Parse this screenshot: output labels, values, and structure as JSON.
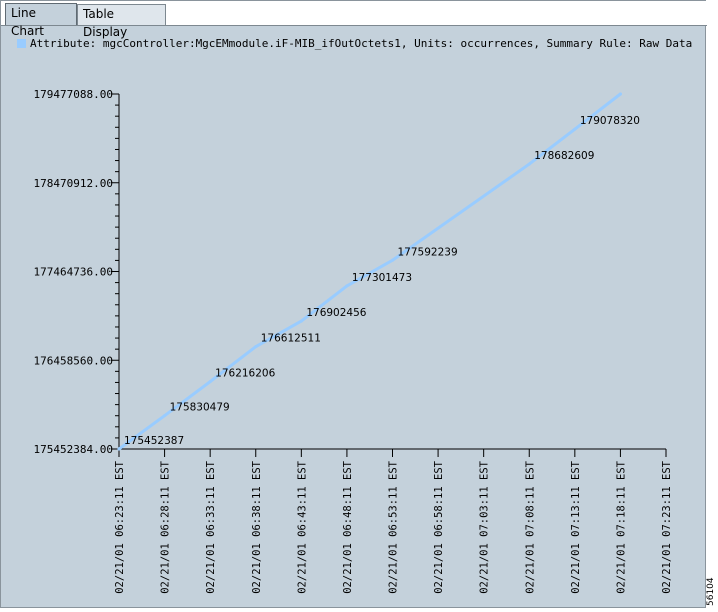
{
  "tabs": [
    {
      "label": "Line Chart",
      "active": true
    },
    {
      "label": "Table Display",
      "active": false
    }
  ],
  "legend": {
    "text": "Attribute: mgcController:MgcEMmodule.iF-MIB_ifOutOctets1, Units: occurrences, Summary Rule: Raw Data",
    "color": "#99ccff"
  },
  "figure_number": "56104",
  "chart_data": {
    "type": "line",
    "title": "",
    "xlabel": "",
    "ylabel": "",
    "series": [
      {
        "name": "mgcController:MgcEMmodule.iF-MIB_ifOutOctets1",
        "color": "#99ccff",
        "x": [
          "02/21/01 06:23:11 EST",
          "02/21/01 06:28:11 EST",
          "02/21/01 06:33:11 EST",
          "02/21/01 06:38:11 EST",
          "02/21/01 06:43:11 EST",
          "02/21/01 06:48:11 EST",
          "02/21/01 06:53:11 EST",
          "02/21/01 07:08:11 EST",
          "02/21/01 07:13:11 EST",
          "02/21/01 07:18:11 EST"
        ],
        "values": [
          175452387,
          175830479,
          176216206,
          176612511,
          176902456,
          177301473,
          177592239,
          178682609,
          179078320,
          179477088
        ]
      }
    ],
    "data_labels": [
      "175452387",
      "175830479",
      "176216206",
      "176612511",
      "176902456",
      "177301473",
      "177592239",
      "178682609",
      "179078320",
      ""
    ],
    "x_ticks": [
      "02/21/01 06:23:11 EST",
      "02/21/01 06:28:11 EST",
      "02/21/01 06:33:11 EST",
      "02/21/01 06:38:11 EST",
      "02/21/01 06:43:11 EST",
      "02/21/01 06:48:11 EST",
      "02/21/01 06:53:11 EST",
      "02/21/01 06:58:11 EST",
      "02/21/01 07:03:11 EST",
      "02/21/01 07:08:11 EST",
      "02/21/01 07:13:11 EST",
      "02/21/01 07:18:11 EST",
      "02/21/01 07:23:11 EST"
    ],
    "y_ticks": [
      "175452384.00",
      "176458560.00",
      "177464736.00",
      "178470912.00",
      "179477088.00"
    ],
    "ylim": [
      175452384,
      179477088
    ],
    "grid": false,
    "legend_position": "top"
  }
}
